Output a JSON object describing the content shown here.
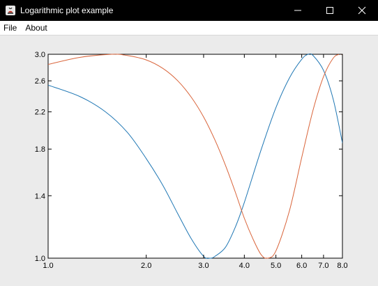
{
  "window": {
    "title": "Logarithmic plot example",
    "controls": [
      "minimize",
      "maximize",
      "close"
    ]
  },
  "menu": {
    "items": [
      {
        "label": "File"
      },
      {
        "label": "About"
      }
    ]
  },
  "colors": {
    "series_blue": "#1f77b4",
    "series_orange": "#d9643a",
    "plot_background": "#ffffff",
    "window_background": "#ebebeb"
  },
  "chart_data": {
    "type": "line",
    "title": "",
    "xlabel": "",
    "ylabel": "",
    "xscale": "log",
    "yscale": "log",
    "xlim": [
      1.0,
      8.0
    ],
    "ylim": [
      1.0,
      3.0
    ],
    "x_ticks": [
      1.0,
      2.0,
      3.0,
      4.0,
      5.0,
      6.0,
      7.0,
      8.0
    ],
    "x_tick_labels": [
      "1.0",
      "2.0",
      "3.0",
      "4.0",
      "5.0",
      "6.0",
      "7.0",
      "8.0"
    ],
    "y_ticks": [
      1.0,
      1.4,
      1.8,
      2.2,
      2.6,
      3.0
    ],
    "y_tick_labels": [
      "1.0",
      "1.4",
      "1.8",
      "2.2",
      "2.6",
      "3.0"
    ],
    "grid": false,
    "legend": "none",
    "series": [
      {
        "color": "#1f77b4",
        "x": [
          1.0,
          1.25,
          1.5,
          1.75,
          2.0,
          2.25,
          2.5,
          2.75,
          3.0,
          3.14,
          3.25,
          3.5,
          3.75,
          4.0,
          4.5,
          5.0,
          5.5,
          6.0,
          6.28,
          6.5,
          7.0,
          7.5,
          8.0
        ],
        "y": [
          2.54,
          2.39,
          2.2,
          1.97,
          1.71,
          1.48,
          1.27,
          1.11,
          1.01,
          1.0,
          1.01,
          1.06,
          1.18,
          1.35,
          1.79,
          2.25,
          2.64,
          2.92,
          3.0,
          2.98,
          2.75,
          2.35,
          1.86
        ]
      },
      {
        "color": "#d9643a",
        "x": [
          1.0,
          1.25,
          1.57,
          1.75,
          2.0,
          2.25,
          2.5,
          2.75,
          3.0,
          3.25,
          3.5,
          3.75,
          4.0,
          4.25,
          4.5,
          4.71,
          5.0,
          5.5,
          6.0,
          6.5,
          7.0,
          7.5,
          7.85,
          8.0
        ],
        "y": [
          2.84,
          2.95,
          3.0,
          2.98,
          2.91,
          2.78,
          2.6,
          2.38,
          2.14,
          1.89,
          1.65,
          1.43,
          1.24,
          1.11,
          1.02,
          1.0,
          1.04,
          1.29,
          1.72,
          2.22,
          2.66,
          2.94,
          3.0,
          2.99
        ]
      }
    ]
  }
}
